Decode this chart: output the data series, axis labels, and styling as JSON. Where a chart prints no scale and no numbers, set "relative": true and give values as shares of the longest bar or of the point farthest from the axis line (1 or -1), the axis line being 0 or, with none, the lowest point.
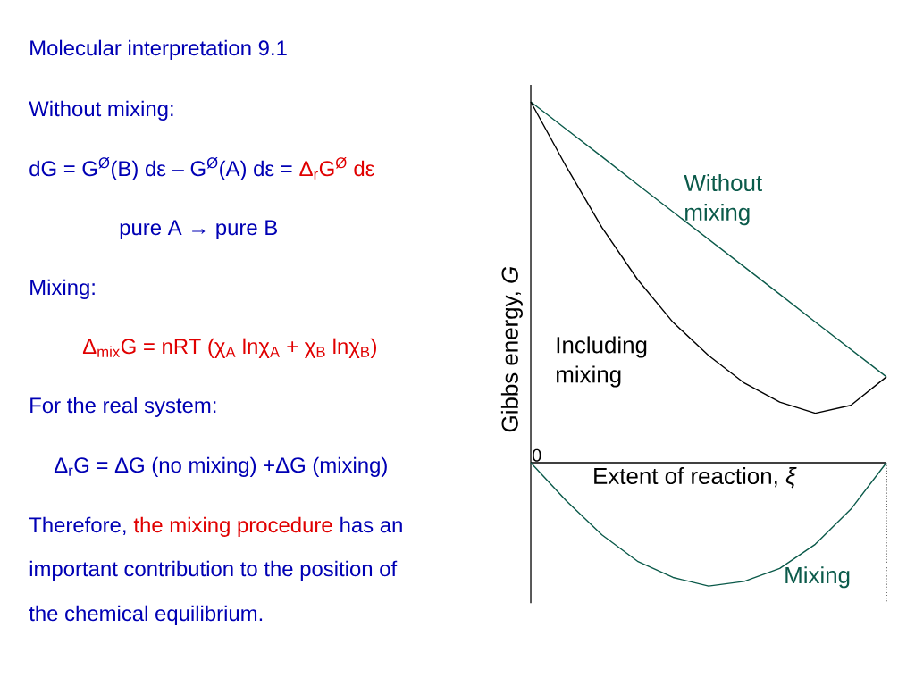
{
  "chart_data": {
    "type": "line",
    "relative": true,
    "title": "Molecular interpretation 9.1",
    "xlabel": "Extent of reaction, *ξ*",
    "ylabel": "Gibbs energy, *G*",
    "legend": false,
    "categories": [
      null,
      null,
      null,
      null,
      null,
      null,
      null,
      null,
      null,
      null,
      null
    ],
    "series": [
      {
        "name": "Without mixing",
        "color": "#0b5a4a",
        "values": [
          1,
          0.924,
          0.848,
          0.771,
          0.695,
          0.619,
          0.543,
          0.467,
          0.39,
          0.314,
          0.238
        ]
      },
      {
        "name": "Including mixing",
        "color": "#000000",
        "values": [
          1,
          0.82,
          0.652,
          0.508,
          0.389,
          0.297,
          0.221,
          0.168,
          0.137,
          0.159,
          0.238
        ]
      },
      {
        "name": "Mixing",
        "color": "#0b5a4a",
        "values": [
          0,
          -0.106,
          -0.2,
          -0.273,
          -0.318,
          -0.342,
          -0.329,
          -0.293,
          -0.226,
          -0.129,
          0
        ]
      }
    ],
    "ref_lines": [
      {
        "axis": "x",
        "line_style": "dotted",
        "color": "#000000"
      }
    ],
    "annotations": [
      {
        "text": "0",
        "y": 0
      },
      "Without mixing:",
      "dG = G$^{Ø}$(B) dε – G$^{Ø}$(A) dε =",
      "Δ$_{r}$G$^{Ø}$ dε",
      "pure A → pure B",
      "Mixing:",
      "Δ$_{mix}$G = nRT (χ$_{A}$ lnχ$_{A}$ + χ$_{B}$ lnχ$_{B}$)",
      "For the real system:",
      "Δ$_{r}$G = ΔG (no mixing)  +ΔG (mixing)",
      "Therefore,",
      "the mixing procedure",
      "has an",
      "important contribution to the position of",
      "the chemical equilibrium."
    ]
  }
}
